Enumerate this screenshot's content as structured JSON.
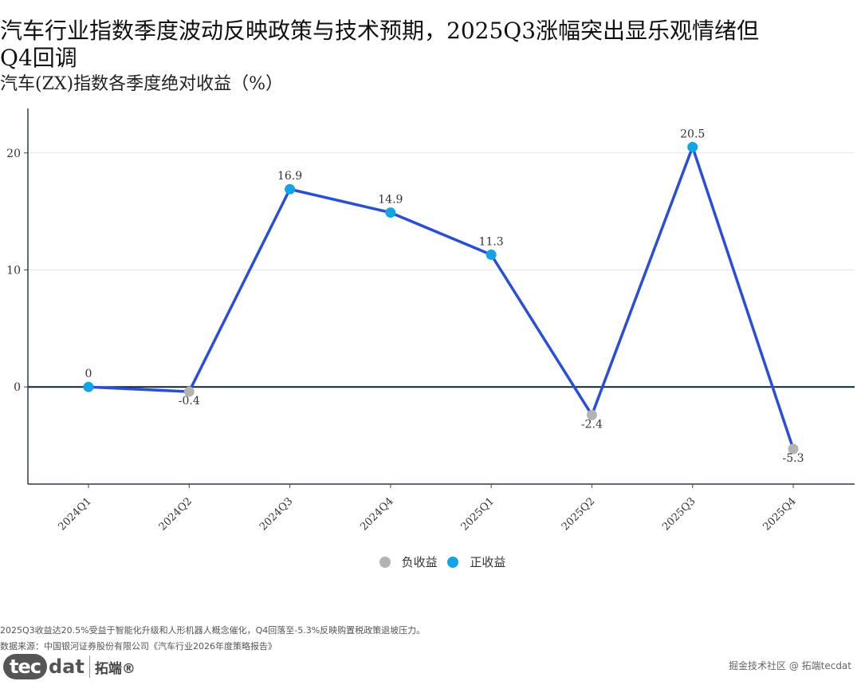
{
  "title_line1": "汽车行业指数季度波动反映政策与技术预期，2025Q3涨幅突出显乐观情绪但",
  "title_line2": "Q4回调",
  "subtitle": "汽车(ZX)指数各季度绝对收益（%）",
  "chart_data": {
    "type": "line",
    "categories": [
      "2024Q1",
      "2024Q2",
      "2024Q3",
      "2024Q4",
      "2025Q1",
      "2025Q2",
      "2025Q3",
      "2025Q4"
    ],
    "values": [
      0,
      -0.4,
      16.9,
      14.9,
      11.3,
      -2.4,
      20.5,
      -5.3
    ],
    "data_labels": [
      "0",
      "-0.4",
      "16.9",
      "14.9",
      "11.3",
      "-2.4",
      "20.5",
      "-5.3"
    ],
    "ylim": [
      -8.3,
      23.8
    ],
    "yticks": [
      0,
      10,
      20
    ],
    "ytick_labels": [
      "0",
      "10",
      "20"
    ],
    "grid": true,
    "zero_line": true,
    "line_color": "#2a4fd6",
    "legend": [
      {
        "name": "负收益",
        "color": "#b3b3b3"
      },
      {
        "name": "正收益",
        "color": "#13a4e8"
      }
    ],
    "legend_position": "bottom"
  },
  "notes": {
    "line1": "2025Q3收益达20.5%受益于智能化升级和人形机器人概念催化，Q4回落至-5.3%反映购置税政策退坡压力。",
    "line2": "数据来源：中国银河证券股份有限公司《汽车行业2026年度策略报告》"
  },
  "brand": {
    "logo_a": "tec",
    "logo_b": "dat",
    "cn": "拓端®"
  },
  "watermark": "掘金技术社区 @ 拓端tecdat"
}
